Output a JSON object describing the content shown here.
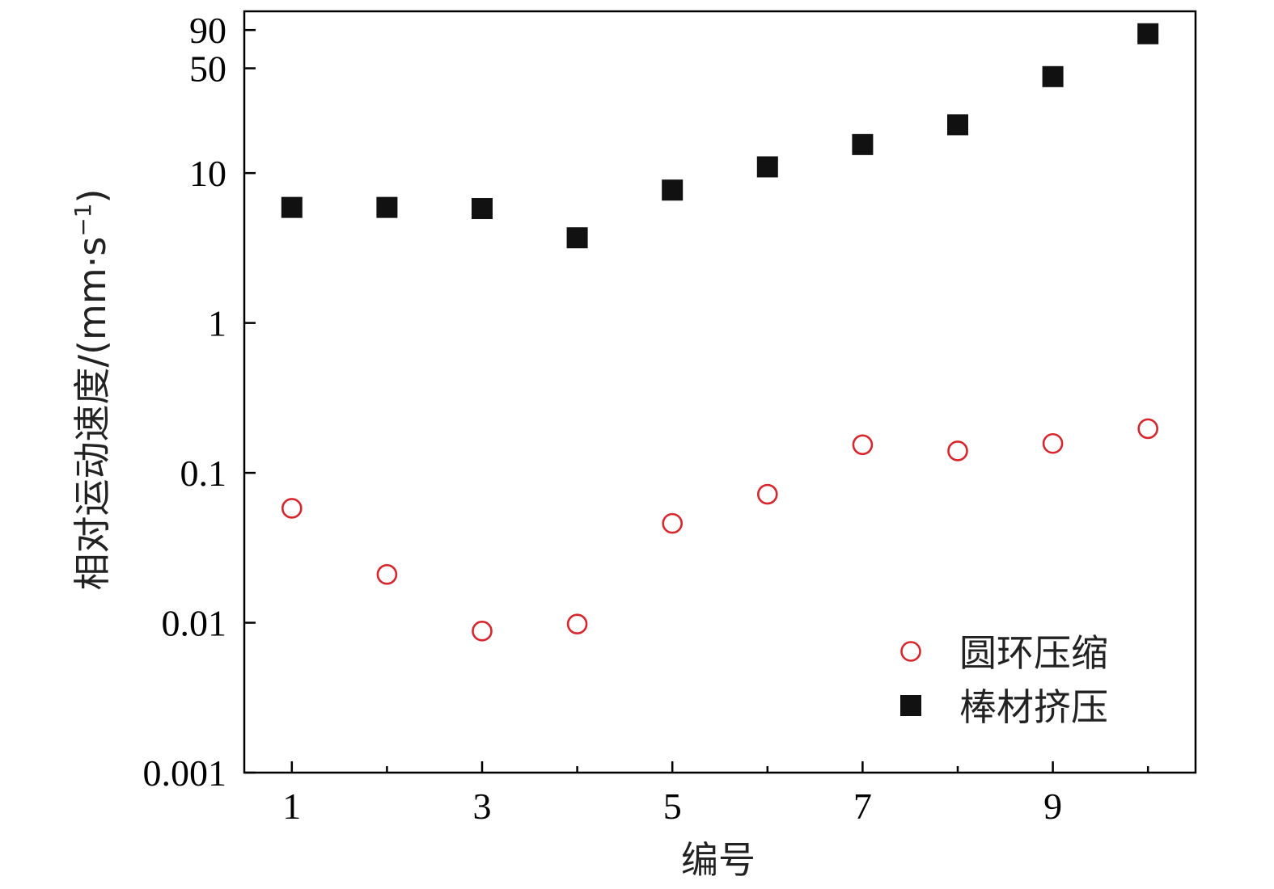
{
  "chart_data": {
    "type": "scatter",
    "title": "",
    "xlabel": "编号",
    "ylabel_main": "相对运动速度/(mm·s",
    "ylabel_sup": "−1",
    "ylabel_close": ")",
    "yscale": "log",
    "xlim": [
      0.5,
      10.5
    ],
    "ylim": [
      0.001,
      120
    ],
    "x_ticks": [
      1,
      3,
      5,
      7,
      9
    ],
    "x_minor_ticks": [
      2,
      4,
      6,
      8,
      10
    ],
    "y_ticks": [
      0.001,
      0.01,
      0.1,
      1,
      10,
      50,
      90
    ],
    "y_tick_labels": [
      "0.001",
      "0.01",
      "0.1",
      "1",
      "10",
      "50",
      "90"
    ],
    "grid": false,
    "legend_position": "bottom-right",
    "series": [
      {
        "name": "圆环压缩",
        "marker": "open-circle",
        "color": "#d9262c",
        "x": [
          1,
          2,
          3,
          4,
          5,
          6,
          7,
          8,
          9,
          10
        ],
        "y": [
          0.058,
          0.021,
          0.0088,
          0.0098,
          0.046,
          0.072,
          0.154,
          0.14,
          0.157,
          0.197
        ]
      },
      {
        "name": "棒材挤压",
        "marker": "filled-square",
        "color": "#111111",
        "x": [
          1,
          2,
          3,
          4,
          5,
          6,
          7,
          8,
          9,
          10
        ],
        "y": [
          5.9,
          5.9,
          5.8,
          3.7,
          7.7,
          11,
          15.5,
          21,
          44,
          85
        ]
      }
    ]
  }
}
